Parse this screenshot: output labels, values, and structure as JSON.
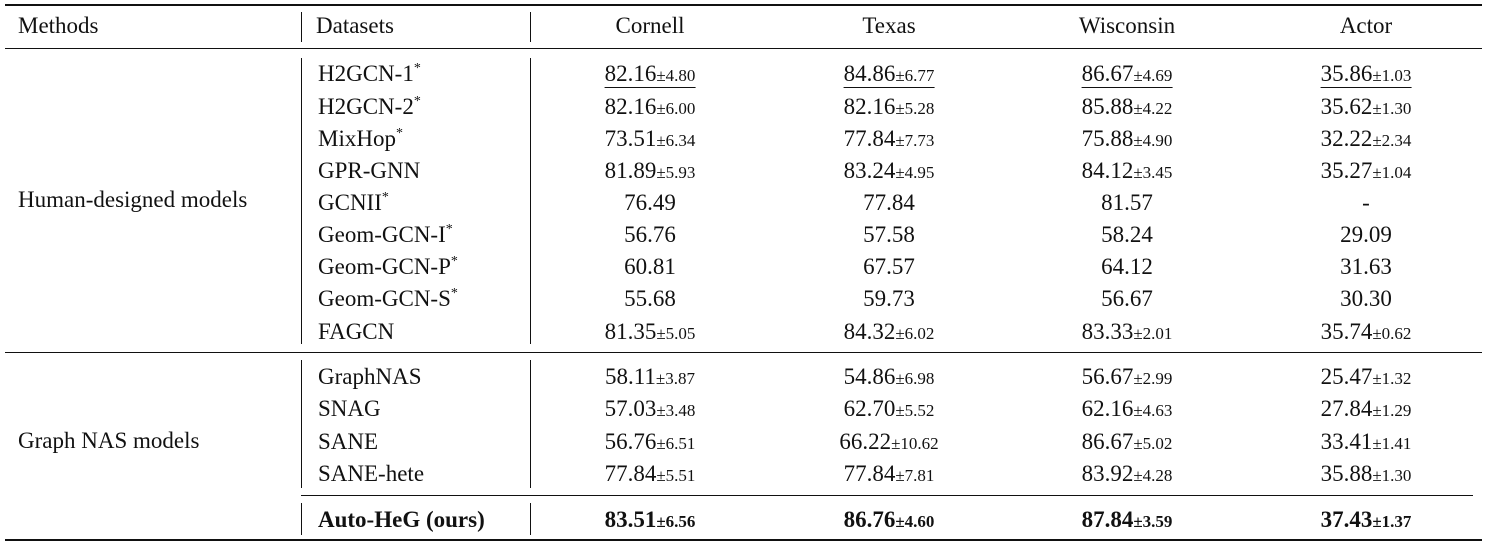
{
  "headers": {
    "methods": "Methods",
    "datasets": "Datasets",
    "cols": [
      "Cornell",
      "Texas",
      "Wisconsin",
      "Actor"
    ]
  },
  "groups": [
    {
      "label": "Human-designed models",
      "rows": [
        {
          "name": "H2GCN-1",
          "star": "*",
          "cells": [
            {
              "v": "82.16",
              "sd": "±4.80",
              "u": true
            },
            {
              "v": "84.86",
              "sd": "±6.77",
              "u": true
            },
            {
              "v": "86.67",
              "sd": "±4.69",
              "u": true
            },
            {
              "v": "35.86",
              "sd": "±1.03",
              "u": true
            }
          ]
        },
        {
          "name": "H2GCN-2",
          "star": "*",
          "cells": [
            {
              "v": "82.16",
              "sd": "±6.00"
            },
            {
              "v": "82.16",
              "sd": "±5.28"
            },
            {
              "v": "85.88",
              "sd": "±4.22"
            },
            {
              "v": "35.62",
              "sd": "±1.30"
            }
          ]
        },
        {
          "name": "MixHop",
          "star": "*",
          "cells": [
            {
              "v": "73.51",
              "sd": "±6.34"
            },
            {
              "v": "77.84",
              "sd": "±7.73"
            },
            {
              "v": "75.88",
              "sd": "±4.90"
            },
            {
              "v": "32.22",
              "sd": "±2.34"
            }
          ]
        },
        {
          "name": "GPR-GNN",
          "star": "",
          "cells": [
            {
              "v": "81.89",
              "sd": "±5.93"
            },
            {
              "v": "83.24",
              "sd": "±4.95"
            },
            {
              "v": "84.12",
              "sd": "±3.45"
            },
            {
              "v": "35.27",
              "sd": "±1.04"
            }
          ]
        },
        {
          "name": "GCNII",
          "star": "*",
          "cells": [
            {
              "v": "76.49",
              "sd": ""
            },
            {
              "v": "77.84",
              "sd": ""
            },
            {
              "v": "81.57",
              "sd": ""
            },
            {
              "v": "-",
              "sd": ""
            }
          ]
        },
        {
          "name": "Geom-GCN-I",
          "star": "*",
          "cells": [
            {
              "v": "56.76",
              "sd": ""
            },
            {
              "v": "57.58",
              "sd": ""
            },
            {
              "v": "58.24",
              "sd": ""
            },
            {
              "v": "29.09",
              "sd": ""
            }
          ]
        },
        {
          "name": "Geom-GCN-P",
          "star": "*",
          "cells": [
            {
              "v": "60.81",
              "sd": ""
            },
            {
              "v": "67.57",
              "sd": ""
            },
            {
              "v": "64.12",
              "sd": ""
            },
            {
              "v": "31.63",
              "sd": ""
            }
          ]
        },
        {
          "name": "Geom-GCN-S",
          "star": "*",
          "cells": [
            {
              "v": "55.68",
              "sd": ""
            },
            {
              "v": "59.73",
              "sd": ""
            },
            {
              "v": "56.67",
              "sd": ""
            },
            {
              "v": "30.30",
              "sd": ""
            }
          ]
        },
        {
          "name": "FAGCN",
          "star": "",
          "cells": [
            {
              "v": "81.35",
              "sd": "±5.05"
            },
            {
              "v": "84.32",
              "sd": "±6.02"
            },
            {
              "v": "83.33",
              "sd": "±2.01"
            },
            {
              "v": "35.74",
              "sd": "±0.62"
            }
          ]
        }
      ]
    },
    {
      "label": "Graph NAS models",
      "rows": [
        {
          "name": "GraphNAS",
          "star": "",
          "cells": [
            {
              "v": "58.11",
              "sd": "±3.87"
            },
            {
              "v": "54.86",
              "sd": "±6.98"
            },
            {
              "v": "56.67",
              "sd": "±2.99"
            },
            {
              "v": "25.47",
              "sd": "±1.32"
            }
          ]
        },
        {
          "name": "SNAG",
          "star": "",
          "cells": [
            {
              "v": "57.03",
              "sd": "±3.48"
            },
            {
              "v": "62.70",
              "sd": "±5.52"
            },
            {
              "v": "62.16",
              "sd": "±4.63"
            },
            {
              "v": "27.84",
              "sd": "±1.29"
            }
          ]
        },
        {
          "name": "SANE",
          "star": "",
          "cells": [
            {
              "v": "56.76",
              "sd": "±6.51"
            },
            {
              "v": "66.22",
              "sd": "±10.62"
            },
            {
              "v": "86.67",
              "sd": "±5.02"
            },
            {
              "v": "33.41",
              "sd": "±1.41"
            }
          ]
        },
        {
          "name": "SANE-hete",
          "star": "",
          "cells": [
            {
              "v": "77.84",
              "sd": "±5.51"
            },
            {
              "v": "77.84",
              "sd": "±7.81"
            },
            {
              "v": "83.92",
              "sd": "±4.28"
            },
            {
              "v": "35.88",
              "sd": "±1.30"
            }
          ]
        }
      ]
    }
  ],
  "ours": {
    "name": "Auto-HeG (ours)",
    "cells": [
      {
        "v": "83.51",
        "sd": "±6.56"
      },
      {
        "v": "86.76",
        "sd": "±4.60"
      },
      {
        "v": "87.84",
        "sd": "±3.59"
      },
      {
        "v": "37.43",
        "sd": "±1.37"
      }
    ]
  }
}
